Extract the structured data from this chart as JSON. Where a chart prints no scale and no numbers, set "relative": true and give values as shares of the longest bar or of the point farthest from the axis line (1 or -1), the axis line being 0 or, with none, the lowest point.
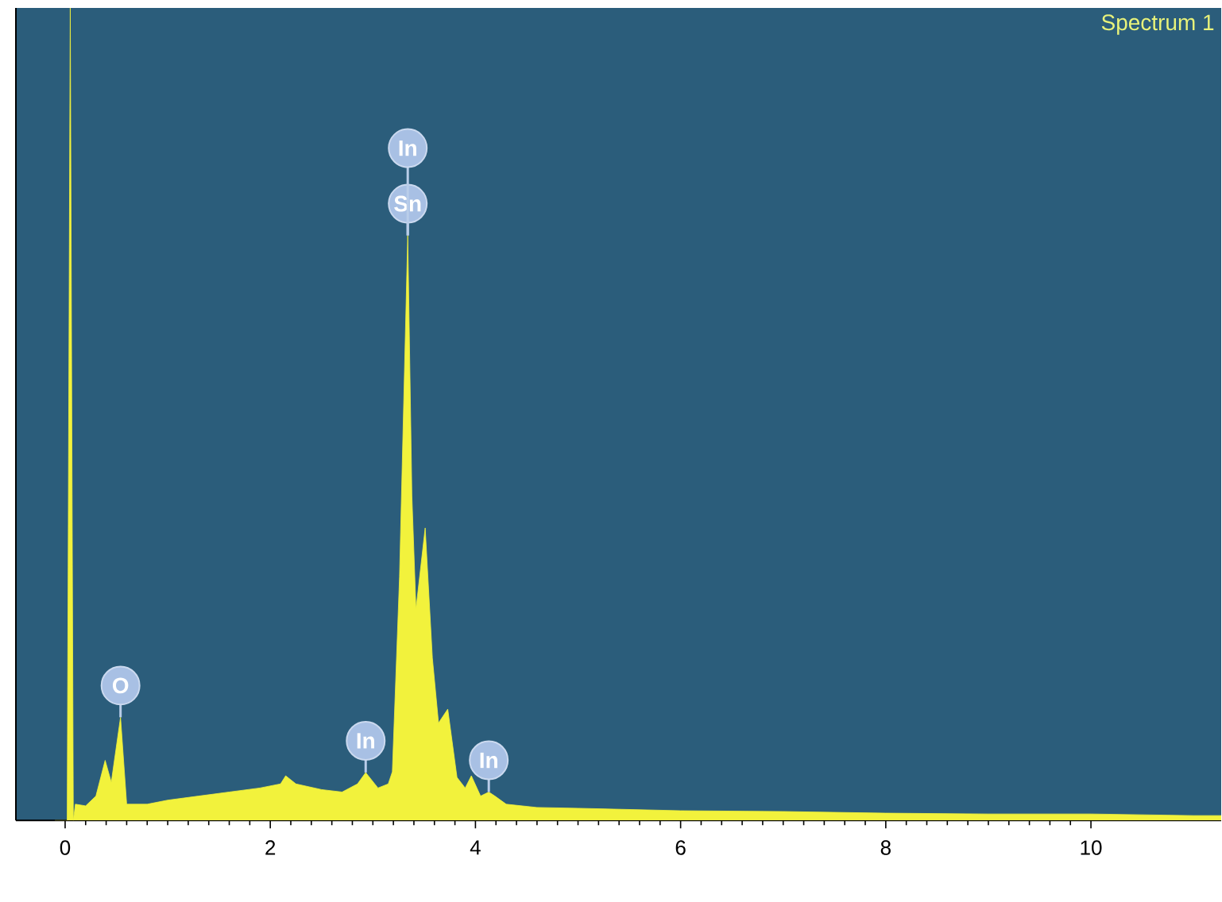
{
  "chart_data": {
    "type": "area",
    "title": "Spectrum 1",
    "relative": true,
    "x": [
      -0.1,
      0.02,
      0.05,
      0.08,
      0.1,
      0.2,
      0.3,
      0.39,
      0.45,
      0.54,
      0.6,
      0.8,
      1.0,
      1.3,
      1.6,
      1.9,
      2.1,
      2.15,
      2.25,
      2.5,
      2.7,
      2.85,
      2.93,
      3.05,
      3.15,
      3.19,
      3.26,
      3.34,
      3.38,
      3.42,
      3.51,
      3.58,
      3.64,
      3.73,
      3.82,
      3.9,
      3.96,
      4.05,
      4.13,
      4.19,
      4.3,
      4.6,
      5,
      6,
      7,
      8,
      9,
      10,
      11,
      11.27
    ],
    "series": [
      {
        "color": "#f2f23c",
        "values": [
          0,
          0,
          1,
          0,
          0.02,
          0.018,
          0.03,
          0.074,
          0.047,
          0.127,
          0.02,
          0.02,
          0.025,
          0.03,
          0.035,
          0.04,
          0.045,
          0.055,
          0.045,
          0.038,
          0.035,
          0.045,
          0.059,
          0.04,
          0.045,
          0.06,
          0.3,
          0.72,
          0.4,
          0.26,
          0.36,
          0.2,
          0.12,
          0.137,
          0.053,
          0.04,
          0.055,
          0.03,
          0.035,
          0.03,
          0.02,
          0.016,
          0.015,
          0.012,
          0.011,
          0.009,
          0.008,
          0.008,
          0.006,
          0.006
        ]
      }
    ],
    "xlim": [
      -0.48,
      11.27
    ],
    "xticks": [
      0,
      2,
      4,
      6,
      8,
      10
    ],
    "annotations": [
      {
        "text": "O",
        "x": 0.54,
        "y": 0.127
      },
      {
        "text": "In",
        "x": 2.93,
        "y": 0.059
      },
      {
        "text": "Sn",
        "x": 3.34,
        "y": 0.72
      },
      {
        "text": "In",
        "x": 3.34,
        "y": 0.72
      },
      {
        "text": "In",
        "x": 4.13,
        "y": 0.035
      }
    ]
  }
}
